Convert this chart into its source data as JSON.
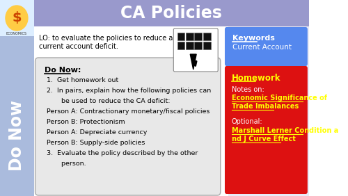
{
  "title": "CA Policies",
  "title_bg": "#9999cc",
  "title_color": "#ffffff",
  "left_sidebar_color": "#aabbdd",
  "left_sidebar_text": "Do Now",
  "left_sidebar_text_color": "#ffffff",
  "lo_text": "LO: to evaluate the policies to reduce a\ncurrent account deficit.",
  "do_now_title": "Do Now:",
  "do_now_box_bg": "#e8e8e8",
  "keywords_bg": "#5588ee",
  "keywords_title": "Keywords",
  "keywords_text": "Current Account",
  "homework_bg": "#dd1111",
  "homework_title": "Homework",
  "homework_title_color": "#ffff00",
  "homework_notes": "Notes on:",
  "homework_link1_line1": "Economic Significance of",
  "homework_link1_line2": "Trade Imbalances",
  "homework_optional": "Optional:",
  "homework_link2_line1": "Marshall Lerner Condition a",
  "homework_link2_line2": "nd J Curve Effect",
  "homework_text_color": "#ffffff",
  "homework_link_color": "#ffff00",
  "main_bg": "#ffffff",
  "do_now_items": [
    "1.  Get homework out",
    "2.  In pairs, explain how the following policies can",
    "       be used to reduce the CA deficit:",
    "Person A: Contractionary monetary/fiscal policies",
    "Person B: Protectionism",
    "Person A: Depreciate currency",
    "Person B: Supply-side policies",
    "3.  Evaluate the policy described by the other",
    "       person."
  ]
}
